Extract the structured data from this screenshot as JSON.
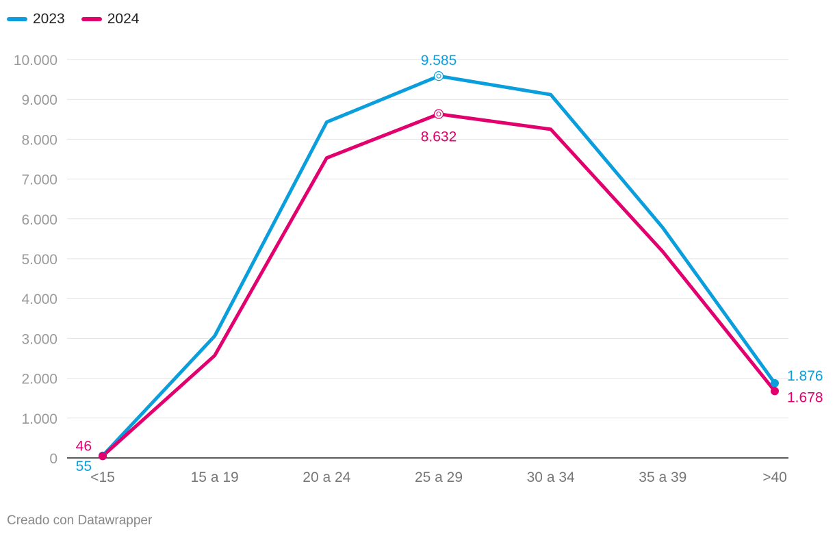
{
  "colors": {
    "s2023": "#0a9fdc",
    "s2024": "#e1006e",
    "grid": "#e2e2e2",
    "axis": "#222222"
  },
  "legend": [
    {
      "name": "2023",
      "color": "#0a9fdc"
    },
    {
      "name": "2024",
      "color": "#e1006e"
    }
  ],
  "footer": "Creado con Datawrapper",
  "chart_data": {
    "type": "line",
    "title": "",
    "xlabel": "",
    "ylabel": "",
    "categories": [
      "<15",
      "15 a 19",
      "20 a 24",
      "25 a 29",
      "30 a 34",
      "35 a 39",
      ">40"
    ],
    "ylim": [
      0,
      10000
    ],
    "yticks": [
      0,
      1000,
      2000,
      3000,
      4000,
      5000,
      6000,
      7000,
      8000,
      9000,
      10000
    ],
    "ytick_labels": [
      "0",
      "1.000",
      "2.000",
      "3.000",
      "4.000",
      "5.000",
      "6.000",
      "7.000",
      "8.000",
      "9.000",
      "10.000"
    ],
    "grid": true,
    "legend_position": "top-left",
    "series": [
      {
        "name": "2023",
        "color": "#0a9fdc",
        "values": [
          55,
          3060,
          8430,
          9585,
          9120,
          5780,
          1876
        ]
      },
      {
        "name": "2024",
        "color": "#e1006e",
        "values": [
          46,
          2570,
          7530,
          8632,
          8250,
          5180,
          1678
        ]
      }
    ],
    "annotations": [
      {
        "series": "2023",
        "index": 0,
        "text": "55"
      },
      {
        "series": "2024",
        "index": 0,
        "text": "46"
      },
      {
        "series": "2023",
        "index": 3,
        "text": "9.585"
      },
      {
        "series": "2024",
        "index": 3,
        "text": "8.632"
      },
      {
        "series": "2023",
        "index": 6,
        "text": "1.876"
      },
      {
        "series": "2024",
        "index": 6,
        "text": "1.678"
      }
    ]
  }
}
